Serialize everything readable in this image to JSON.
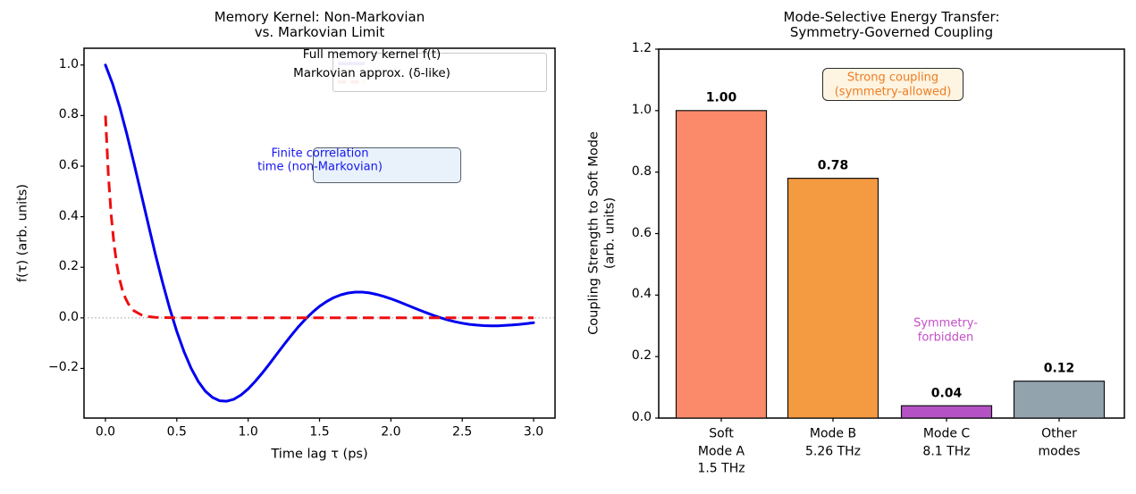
{
  "figure": {
    "background": "#ffffff"
  },
  "chart_data": [
    {
      "type": "line",
      "title": "Memory Kernel: Non-Markovian\nvs. Markovian Limit",
      "title_lines": [
        "Memory Kernel: Non-Markovian",
        "vs. Markovian Limit"
      ],
      "xlabel": "Time lag τ (ps)",
      "ylabel": "f(τ) (arb. units)",
      "xlim": [
        -0.15,
        3.15
      ],
      "ylim": [
        -0.396,
        1.066
      ],
      "grid": false,
      "xticks": [
        0.0,
        0.5,
        1.0,
        1.5,
        2.0,
        2.5,
        3.0
      ],
      "xtick_labels": [
        "0.0",
        "0.5",
        "1.0",
        "1.5",
        "2.0",
        "2.5",
        "3.0"
      ],
      "yticks": [
        1.0,
        0.8,
        0.6,
        0.4,
        0.2,
        0.0,
        -0.2
      ],
      "ytick_labels": [
        "1.0",
        "0.8",
        "0.6",
        "0.4",
        "0.2",
        "0.0",
        "−0.2"
      ],
      "zero_line": {
        "y": 0.0,
        "style": "dotted",
        "color": "#999999"
      },
      "legend": {
        "position": "upper right",
        "entries": [
          {
            "label": "Full memory kernel f(t)",
            "color": "#0000f0",
            "style": "solid"
          },
          {
            "label": "Markovian approx. (δ-like)",
            "color": "#ee0e0e",
            "style": "dashed"
          }
        ]
      },
      "series": [
        {
          "name": "Full memory kernel f(t)",
          "color": "#0000f0",
          "style": "solid",
          "line_width": 3,
          "x": [
            0,
            0.05,
            0.1,
            0.15,
            0.2,
            0.25,
            0.3,
            0.35,
            0.4,
            0.45,
            0.5,
            0.55,
            0.6,
            0.65,
            0.7,
            0.75,
            0.8,
            0.85,
            0.9,
            0.95,
            1,
            1.05,
            1.1,
            1.15,
            1.2,
            1.25,
            1.3,
            1.35,
            1.4,
            1.45,
            1.5,
            1.55,
            1.6,
            1.65,
            1.7,
            1.75,
            1.8,
            1.85,
            1.9,
            1.95,
            2,
            2.05,
            2.1,
            2.15,
            2.2,
            2.25,
            2.3,
            2.35,
            2.4,
            2.45,
            2.5,
            2.55,
            2.6,
            2.65,
            2.7,
            2.75,
            2.8,
            2.85,
            2.9,
            2.95,
            3
          ],
          "y": [
            1,
            0.9263,
            0.8337,
            0.727,
            0.6113,
            0.4911,
            0.3703,
            0.252,
            0.1409,
            0.038,
            -0.0537,
            -0.1326,
            -0.1991,
            -0.2513,
            -0.2898,
            -0.3148,
            -0.3276,
            -0.3296,
            -0.3218,
            -0.3048,
            -0.2807,
            -0.2511,
            -0.2175,
            -0.1814,
            -0.1438,
            -0.1066,
            -0.0704,
            -0.0368,
            -0.006,
            0.0218,
            0.0455,
            0.0649,
            0.0802,
            0.0914,
            0.0984,
            0.1018,
            0.1017,
            0.0985,
            0.0928,
            0.085,
            0.0756,
            0.065,
            0.0537,
            0.0422,
            0.0307,
            0.0198,
            0.0094,
            0,
            -0.0083,
            -0.0154,
            -0.0211,
            -0.0256,
            -0.0287,
            -0.0306,
            -0.0315,
            -0.0312,
            -0.0301,
            -0.0283,
            -0.0257,
            -0.0227,
            -0.0194
          ]
        },
        {
          "name": "Markovian approx. (δ-like)",
          "color": "#ee0e0e",
          "style": "dashed",
          "line_width": 3,
          "x": [
            0,
            0.02,
            0.04,
            0.06,
            0.08,
            0.1,
            0.12,
            0.14,
            0.16,
            0.18,
            0.2,
            0.25,
            0.3,
            0.35,
            0.4,
            0.5,
            0.6,
            0.8,
            1,
            1.25,
            1.5,
            1.75,
            2,
            2.25,
            2.5,
            2.75,
            3
          ],
          "y": [
            0.8,
            0.573,
            0.41,
            0.294,
            0.211,
            0.151,
            0.108,
            0.078,
            0.056,
            0.04,
            0.028,
            0.012,
            0.005,
            0.002,
            0.001,
            0,
            0,
            0,
            0,
            0,
            0,
            0,
            0,
            0,
            0,
            0,
            0
          ]
        }
      ],
      "annotations": [
        {
          "text": "Finite correlation\ntime (non-Markovian)",
          "text_lines": [
            "Finite correlation",
            "time (non-Markovian)"
          ],
          "color": "#1616f0",
          "box_bg": "#e9f2fb",
          "box_border": "#55606b"
        }
      ]
    },
    {
      "type": "bar",
      "title": "Mode-Selective Energy Transfer:\nSymmetry-Governed Coupling",
      "title_lines": [
        "Mode-Selective Energy Transfer:",
        "Symmetry-Governed Coupling"
      ],
      "ylabel": "Coupling Strength to Soft Mode\n(arb. units)",
      "ylabel_lines": [
        "Coupling Strength to Soft Mode",
        "(arb. units)"
      ],
      "ylim": [
        0,
        1.2
      ],
      "grid": false,
      "yticks": [
        0.0,
        0.2,
        0.4,
        0.6,
        0.8,
        1.0,
        1.2
      ],
      "ytick_labels": [
        "0.0",
        "0.2",
        "0.4",
        "0.6",
        "0.8",
        "1.0",
        "1.2"
      ],
      "categories": [
        "Soft Mode A 1.5 THz",
        "Mode B 5.26 THz",
        "Mode C 8.1 THz",
        "Other modes"
      ],
      "categories_lines": [
        [
          "Soft",
          "Mode A",
          "1.5 THz"
        ],
        [
          "Mode B",
          "5.26 THz"
        ],
        [
          "Mode C",
          "8.1 THz"
        ],
        [
          "Other",
          "modes"
        ]
      ],
      "values": [
        1.0,
        0.78,
        0.04,
        0.12
      ],
      "value_labels": [
        "1.00",
        "0.78",
        "0.04",
        "0.12"
      ],
      "bar_colors": [
        "#fa8a6a",
        "#f49a41",
        "#b452c5",
        "#93a3ad"
      ],
      "bar_edge_color": "#111111",
      "annotations": [
        {
          "text": "Strong coupling\n(symmetry-allowed)",
          "text_lines": [
            "Strong coupling",
            "(symmetry-allowed)"
          ],
          "color": "#ef7d23",
          "box_bg": "#fdf4e1",
          "box_border": "#2b2b2b"
        },
        {
          "text": "Symmetry-\nforbidden",
          "text_lines": [
            "Symmetry-",
            "forbidden"
          ],
          "color": "#c44fc8",
          "box_bg": null
        }
      ]
    }
  ]
}
